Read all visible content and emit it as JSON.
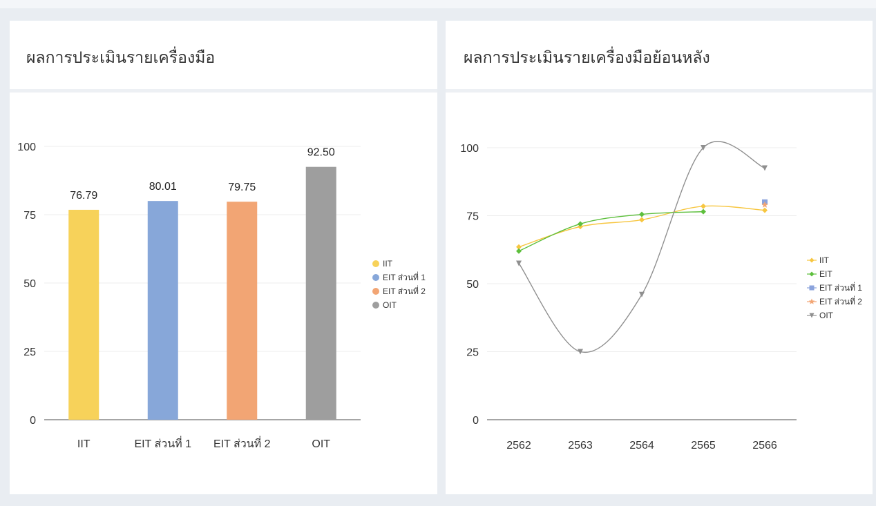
{
  "cards": {
    "left": {
      "title": "ผลการประเมินรายเครื่องมือ"
    },
    "right": {
      "title": "ผลการประเมินรายเครื่องมือย้อนหลัง"
    }
  },
  "chart_data": [
    {
      "type": "bar",
      "categories": [
        "IIT",
        "EIT ส่วนที่ 1",
        "EIT ส่วนที่ 2",
        "OIT"
      ],
      "values": [
        76.79,
        80.01,
        79.75,
        92.5
      ],
      "value_labels": [
        "76.79",
        "80.01",
        "79.75",
        "92.50"
      ],
      "colors": [
        "#f7d25a",
        "#87a7d9",
        "#f2a574",
        "#9e9e9e"
      ],
      "ylim": [
        0,
        100
      ],
      "yticks": [
        "0",
        "25",
        "50",
        "75",
        "100"
      ],
      "legend": [
        "IIT",
        "EIT ส่วนที่ 1",
        "EIT ส่วนที่ 2",
        "OIT"
      ],
      "legend_position": "right",
      "grid": true
    },
    {
      "type": "line",
      "categories": [
        "2562",
        "2563",
        "2564",
        "2565",
        "2566"
      ],
      "ylim": [
        0,
        100
      ],
      "yticks": [
        "0",
        "25",
        "50",
        "75",
        "100"
      ],
      "series": [
        {
          "name": "IIT",
          "color": "#f7c640",
          "marker": "diamond",
          "values": [
            63.5,
            71,
            73.5,
            78.5,
            77
          ]
        },
        {
          "name": "EIT",
          "color": "#5dbf3c",
          "marker": "diamond",
          "values": [
            62,
            72,
            75.5,
            76.5,
            null
          ]
        },
        {
          "name": "EIT ส่วนที่ 1",
          "color": "#8ba3dc",
          "marker": "square",
          "values": [
            null,
            null,
            null,
            null,
            80
          ]
        },
        {
          "name": "EIT ส่วนที่ 2",
          "color": "#f2a574",
          "marker": "star",
          "values": [
            null,
            null,
            null,
            null,
            79
          ]
        },
        {
          "name": "OIT",
          "color": "#8f8f8f",
          "marker": "triangle-down",
          "values": [
            57.5,
            25,
            46,
            100,
            92.5
          ]
        }
      ],
      "legend_position": "right",
      "grid": true
    }
  ]
}
